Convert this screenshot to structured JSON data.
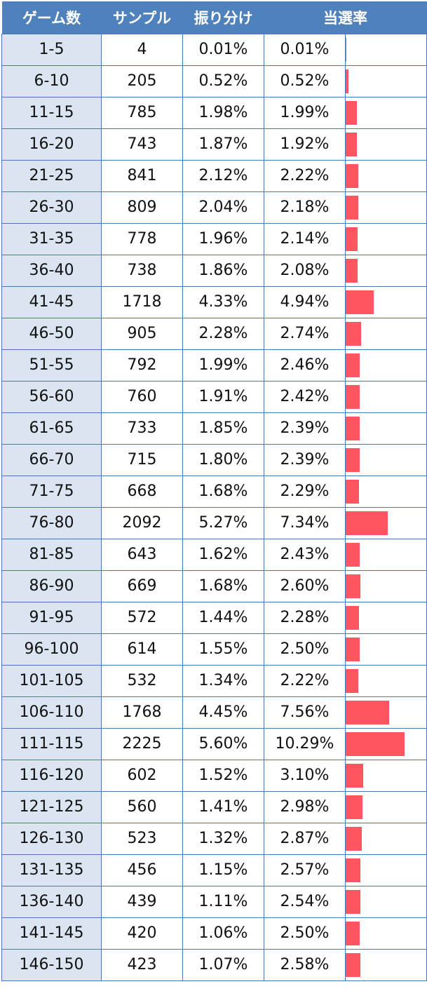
{
  "chart_data": {
    "type": "table",
    "columns": [
      "ゲーム数",
      "サンプル",
      "振り分け",
      "当選率",
      ""
    ],
    "colors": {
      "header_bg": "#4f81bd",
      "range_bg": "#dbe5f1",
      "bar": "#ff5560",
      "border": "#4a78b5"
    },
    "bar_max": 10.29,
    "rows": [
      {
        "range": "1-5",
        "samples": "4",
        "share": "0.01%",
        "rate": "0.01%",
        "rate_value": 0.01
      },
      {
        "range": "6-10",
        "samples": "205",
        "share": "0.52%",
        "rate": "0.52%",
        "rate_value": 0.52
      },
      {
        "range": "11-15",
        "samples": "785",
        "share": "1.98%",
        "rate": "1.99%",
        "rate_value": 1.99
      },
      {
        "range": "16-20",
        "samples": "743",
        "share": "1.87%",
        "rate": "1.92%",
        "rate_value": 1.92
      },
      {
        "range": "21-25",
        "samples": "841",
        "share": "2.12%",
        "rate": "2.22%",
        "rate_value": 2.22
      },
      {
        "range": "26-30",
        "samples": "809",
        "share": "2.04%",
        "rate": "2.18%",
        "rate_value": 2.18
      },
      {
        "range": "31-35",
        "samples": "778",
        "share": "1.96%",
        "rate": "2.14%",
        "rate_value": 2.14
      },
      {
        "range": "36-40",
        "samples": "738",
        "share": "1.86%",
        "rate": "2.08%",
        "rate_value": 2.08
      },
      {
        "range": "41-45",
        "samples": "1718",
        "share": "4.33%",
        "rate": "4.94%",
        "rate_value": 4.94
      },
      {
        "range": "46-50",
        "samples": "905",
        "share": "2.28%",
        "rate": "2.74%",
        "rate_value": 2.74
      },
      {
        "range": "51-55",
        "samples": "792",
        "share": "1.99%",
        "rate": "2.46%",
        "rate_value": 2.46
      },
      {
        "range": "56-60",
        "samples": "760",
        "share": "1.91%",
        "rate": "2.42%",
        "rate_value": 2.42
      },
      {
        "range": "61-65",
        "samples": "733",
        "share": "1.85%",
        "rate": "2.39%",
        "rate_value": 2.39
      },
      {
        "range": "66-70",
        "samples": "715",
        "share": "1.80%",
        "rate": "2.39%",
        "rate_value": 2.39
      },
      {
        "range": "71-75",
        "samples": "668",
        "share": "1.68%",
        "rate": "2.29%",
        "rate_value": 2.29
      },
      {
        "range": "76-80",
        "samples": "2092",
        "share": "5.27%",
        "rate": "7.34%",
        "rate_value": 7.34
      },
      {
        "range": "81-85",
        "samples": "643",
        "share": "1.62%",
        "rate": "2.43%",
        "rate_value": 2.43
      },
      {
        "range": "86-90",
        "samples": "669",
        "share": "1.68%",
        "rate": "2.60%",
        "rate_value": 2.6
      },
      {
        "range": "91-95",
        "samples": "572",
        "share": "1.44%",
        "rate": "2.28%",
        "rate_value": 2.28
      },
      {
        "range": "96-100",
        "samples": "614",
        "share": "1.55%",
        "rate": "2.50%",
        "rate_value": 2.5
      },
      {
        "range": "101-105",
        "samples": "532",
        "share": "1.34%",
        "rate": "2.22%",
        "rate_value": 2.22
      },
      {
        "range": "106-110",
        "samples": "1768",
        "share": "4.45%",
        "rate": "7.56%",
        "rate_value": 7.56
      },
      {
        "range": "111-115",
        "samples": "2225",
        "share": "5.60%",
        "rate": "10.29%",
        "rate_value": 10.29
      },
      {
        "range": "116-120",
        "samples": "602",
        "share": "1.52%",
        "rate": "3.10%",
        "rate_value": 3.1
      },
      {
        "range": "121-125",
        "samples": "560",
        "share": "1.41%",
        "rate": "2.98%",
        "rate_value": 2.98
      },
      {
        "range": "126-130",
        "samples": "523",
        "share": "1.32%",
        "rate": "2.87%",
        "rate_value": 2.87
      },
      {
        "range": "131-135",
        "samples": "456",
        "share": "1.15%",
        "rate": "2.57%",
        "rate_value": 2.57
      },
      {
        "range": "136-140",
        "samples": "439",
        "share": "1.11%",
        "rate": "2.54%",
        "rate_value": 2.54
      },
      {
        "range": "141-145",
        "samples": "420",
        "share": "1.06%",
        "rate": "2.50%",
        "rate_value": 2.5
      },
      {
        "range": "146-150",
        "samples": "423",
        "share": "1.07%",
        "rate": "2.58%",
        "rate_value": 2.58
      }
    ]
  }
}
